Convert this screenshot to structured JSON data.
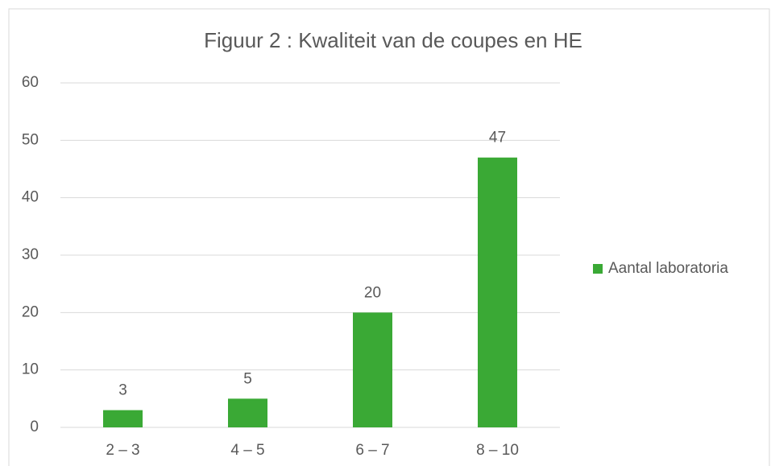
{
  "chart_data": {
    "type": "bar",
    "title": "Figuur 2 : Kwaliteit van de coupes en HE",
    "categories": [
      "2 – 3",
      "4 – 5",
      "6 – 7",
      "8 – 10"
    ],
    "series": [
      {
        "name": "Aantal laboratoria",
        "color": "#3aa935",
        "values": [
          3,
          5,
          20,
          47
        ]
      }
    ],
    "ylim": [
      0,
      60
    ],
    "yticks": [
      0,
      10,
      20,
      30,
      40,
      50,
      60
    ],
    "grid": true,
    "legend": "right",
    "data_labels": true
  }
}
